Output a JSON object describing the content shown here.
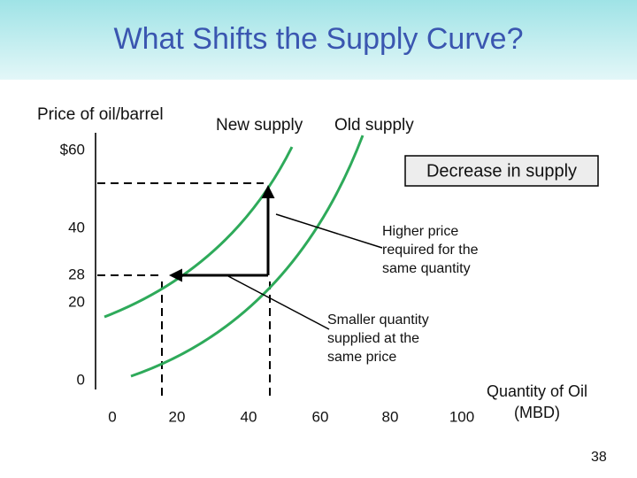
{
  "title": "What Shifts the Supply Curve?",
  "y_axis": {
    "label": "Price of oil/barrel",
    "ticks": [
      "$60",
      "40",
      "28",
      "20",
      "0"
    ]
  },
  "x_axis": {
    "label": [
      "Quantity of Oil",
      "(MBD)"
    ],
    "ticks": [
      "0",
      "20",
      "40",
      "60",
      "80",
      "100"
    ]
  },
  "curves": [
    "New supply",
    "Old supply"
  ],
  "callouts": {
    "box": "Decrease in supply",
    "notes": [
      [
        "Higher price",
        "required for the",
        "same quantity"
      ],
      [
        "Smaller quantity",
        "supplied at the",
        "same price"
      ]
    ]
  },
  "page_number": "38"
}
